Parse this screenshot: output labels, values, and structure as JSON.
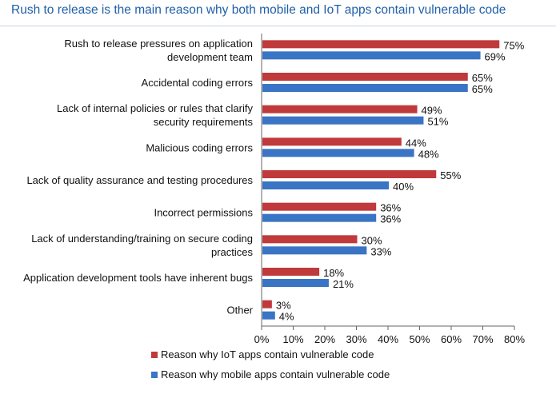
{
  "title": "Rush to release is the main reason why both mobile and IoT apps contain vulnerable code",
  "chart_data": {
    "type": "bar",
    "orientation": "horizontal",
    "categories": [
      [
        "Rush to release pressures on application",
        "development team"
      ],
      [
        "Accidental coding errors"
      ],
      [
        "Lack of internal policies or rules that clarify",
        "security requirements"
      ],
      [
        "Malicious coding errors"
      ],
      [
        "Lack of quality assurance and testing procedures"
      ],
      [
        "Incorrect permissions"
      ],
      [
        "Lack of understanding/training on secure coding",
        "practices"
      ],
      [
        "Application development tools have inherent bugs"
      ],
      [
        "Other"
      ]
    ],
    "series": [
      {
        "name": "Reason why IoT apps contain vulnerable code",
        "color": "#c0393b",
        "values": [
          75,
          65,
          49,
          44,
          55,
          36,
          30,
          18,
          3
        ],
        "labels": [
          "75%",
          "65%",
          "49%",
          "44%",
          "55%",
          "36%",
          "30%",
          "18%",
          "3%"
        ]
      },
      {
        "name": "Reason why mobile apps contain vulnerable code",
        "color": "#3a74c4",
        "values": [
          69,
          65,
          51,
          48,
          40,
          36,
          33,
          21,
          4
        ],
        "labels": [
          "69%",
          "65%",
          "51%",
          "48%",
          "40%",
          "36%",
          "33%",
          "21%",
          "4%"
        ]
      }
    ],
    "xlim": [
      0,
      80
    ],
    "xticks": [
      "0%",
      "10%",
      "20%",
      "30%",
      "40%",
      "50%",
      "60%",
      "70%",
      "80%"
    ],
    "legend_position": "bottom"
  }
}
